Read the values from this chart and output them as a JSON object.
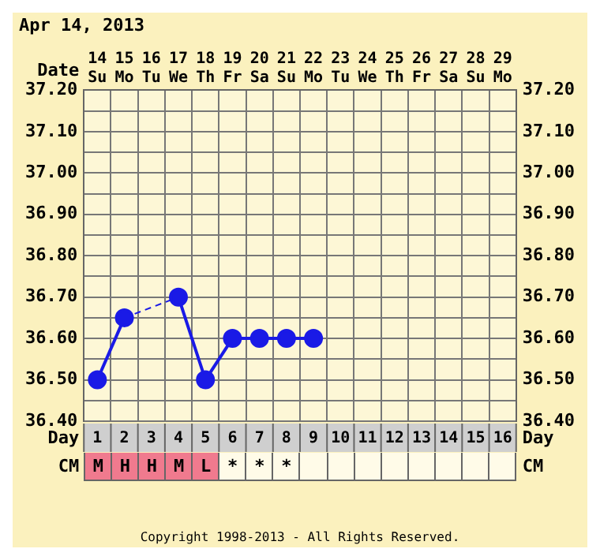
{
  "chart_data": {
    "type": "line",
    "title": "Apr 14, 2013",
    "xlabel": "Date",
    "x2label": "Day",
    "categories": [
      "14 Su",
      "15 Mo",
      "16 Tu",
      "17 We",
      "18 Th",
      "19 Fr",
      "20 Sa",
      "21 Su",
      "22 Mo",
      "23 Tu",
      "24 We",
      "25 Th",
      "26 Fr",
      "27 Sa",
      "28 Su",
      "29 Mo"
    ],
    "series": [
      {
        "color": "#1a1ae6",
        "values": [
          36.5,
          36.65,
          null,
          36.7,
          36.5,
          36.6,
          36.6,
          36.6,
          36.6,
          null,
          null,
          null,
          null,
          null,
          null,
          null
        ]
      }
    ],
    "ylim": [
      36.4,
      37.2
    ],
    "yticks": [
      {
        "value": 36.4,
        "label": "36.40"
      },
      {
        "value": 36.45,
        "label": null
      },
      {
        "value": 36.5,
        "label": "36.50"
      },
      {
        "value": 36.55,
        "label": null
      },
      {
        "value": 36.6,
        "label": "36.60"
      },
      {
        "value": 36.65,
        "label": null
      },
      {
        "value": 36.7,
        "label": "36.70"
      },
      {
        "value": 36.75,
        "label": null
      },
      {
        "value": 36.8,
        "label": "36.80"
      },
      {
        "value": 36.85,
        "label": null
      },
      {
        "value": 36.9,
        "label": "36.90"
      },
      {
        "value": 36.95,
        "label": null
      },
      {
        "value": 37.0,
        "label": "37.00"
      },
      {
        "value": 37.05,
        "label": null
      },
      {
        "value": 37.1,
        "label": "37.10"
      },
      {
        "value": 37.15,
        "label": null
      },
      {
        "value": 37.2,
        "label": "37.20"
      }
    ],
    "y2lim": [
      36.4,
      37.2
    ],
    "y2ticks": [
      {
        "value": 36.4,
        "label": "36.40"
      },
      {
        "value": 36.45,
        "label": null
      },
      {
        "value": 36.5,
        "label": "36.50"
      },
      {
        "value": 36.55,
        "label": null
      },
      {
        "value": 36.6,
        "label": "36.60"
      },
      {
        "value": 36.65,
        "label": null
      },
      {
        "value": 36.7,
        "label": "36.70"
      },
      {
        "value": 36.75,
        "label": null
      },
      {
        "value": 36.8,
        "label": "36.80"
      },
      {
        "value": 36.85,
        "label": null
      },
      {
        "value": 36.9,
        "label": "36.90"
      },
      {
        "value": 36.95,
        "label": null
      },
      {
        "value": 37.0,
        "label": "37.00"
      },
      {
        "value": 37.05,
        "label": null
      },
      {
        "value": 37.1,
        "label": "37.10"
      },
      {
        "value": 37.15,
        "label": null
      },
      {
        "value": 37.2,
        "label": "37.20"
      }
    ],
    "x2lim": [
      0.5,
      16.5
    ],
    "x2ticks": [
      1,
      2,
      3,
      4,
      5,
      6,
      7,
      8,
      9,
      10,
      11,
      12,
      13,
      14,
      15,
      16
    ],
    "grid": true,
    "marker": "circle",
    "line_style": "solid",
    "legend": false,
    "annotations": [
      "CM",
      "Copyright 1998-2013 - All Rights Reserved.",
      "M",
      "H",
      "H",
      "M",
      "L",
      "*",
      "*",
      "*"
    ]
  }
}
